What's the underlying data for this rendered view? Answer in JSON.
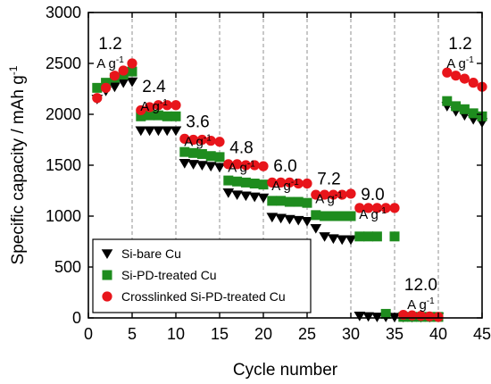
{
  "chart_data": {
    "type": "scatter",
    "title": "",
    "xlabel": "Cycle number",
    "ylabel": "Specific capacity / mAh g",
    "ylabel_superscript": "-1",
    "xlim": [
      0,
      45
    ],
    "ylim": [
      0,
      3000
    ],
    "x_ticks": [
      0,
      5,
      10,
      15,
      20,
      25,
      30,
      35,
      40,
      45
    ],
    "y_ticks": [
      0,
      500,
      1000,
      1500,
      2000,
      2500,
      3000
    ],
    "grid": "dashed vertical lines at 5, 10, 15, 20, 25, 30, 35, 40",
    "legend_position": "bottom-left",
    "rate_unit": "A g",
    "rate_unit_superscript": "-1",
    "rate_labels": [
      {
        "value": "1.2",
        "x": 2.5,
        "y": 2640
      },
      {
        "value": "2.4",
        "x": 7.5,
        "y": 2220
      },
      {
        "value": "3.6",
        "x": 12.5,
        "y": 1875
      },
      {
        "value": "4.8",
        "x": 17.5,
        "y": 1620
      },
      {
        "value": "6.0",
        "x": 22.5,
        "y": 1440
      },
      {
        "value": "7.2",
        "x": 27.5,
        "y": 1310
      },
      {
        "value": "9.0",
        "x": 32.5,
        "y": 1160
      },
      {
        "value": "12.0",
        "x": 38,
        "y": 270
      },
      {
        "value": "1.2",
        "x": 42.5,
        "y": 2640
      }
    ],
    "series": [
      {
        "name": "Si-bare Cu",
        "marker": "triangle-down",
        "color": "#000000",
        "x": [
          1,
          2,
          3,
          4,
          5,
          6,
          7,
          8,
          9,
          10,
          11,
          12,
          13,
          14,
          15,
          16,
          17,
          18,
          19,
          20,
          21,
          22,
          23,
          24,
          25,
          26,
          27,
          28,
          29,
          30,
          31,
          32,
          33,
          34,
          35,
          36,
          37,
          38,
          39,
          40,
          41,
          42,
          43,
          44,
          45
        ],
        "y": [
          2150,
          2230,
          2270,
          2310,
          2320,
          1840,
          1840,
          1840,
          1840,
          1840,
          1520,
          1510,
          1500,
          1490,
          1480,
          1230,
          1210,
          1200,
          1190,
          1180,
          990,
          980,
          970,
          960,
          950,
          880,
          800,
          780,
          770,
          770,
          20,
          15,
          10,
          10,
          8,
          8,
          8,
          8,
          8,
          8,
          2080,
          2030,
          1990,
          1950,
          1920
        ]
      },
      {
        "name": "Si-PD-treated Cu",
        "marker": "square",
        "color": "#1e8c1e",
        "x": [
          1,
          2,
          3,
          4,
          5,
          6,
          7,
          8,
          9,
          10,
          11,
          12,
          13,
          14,
          15,
          16,
          17,
          18,
          19,
          20,
          21,
          22,
          23,
          24,
          25,
          26,
          27,
          28,
          29,
          30,
          31,
          32,
          33,
          34,
          35,
          36,
          37,
          38,
          39,
          40,
          41,
          42,
          43,
          44,
          45
        ],
        "y": [
          2260,
          2310,
          2360,
          2390,
          2420,
          1980,
          1990,
          1990,
          1980,
          1980,
          1630,
          1620,
          1610,
          1590,
          1580,
          1350,
          1340,
          1330,
          1320,
          1310,
          1150,
          1150,
          1140,
          1140,
          1130,
          1010,
          1000,
          1000,
          1000,
          1000,
          800,
          800,
          800,
          40,
          800,
          10,
          10,
          10,
          10,
          10,
          2130,
          2080,
          2050,
          2010,
          1980
        ]
      },
      {
        "name": "Crosslinked Si-PD-treated Cu",
        "marker": "circle",
        "color": "#e8151b",
        "x": [
          1,
          2,
          3,
          4,
          5,
          6,
          7,
          8,
          9,
          10,
          11,
          12,
          13,
          14,
          15,
          16,
          17,
          18,
          19,
          20,
          21,
          22,
          23,
          24,
          25,
          26,
          27,
          28,
          29,
          30,
          31,
          32,
          33,
          34,
          35,
          36,
          37,
          38,
          39,
          40,
          41,
          42,
          43,
          44,
          45
        ],
        "y": [
          2160,
          2260,
          2380,
          2430,
          2500,
          2040,
          2070,
          2090,
          2090,
          2090,
          1760,
          1750,
          1750,
          1740,
          1730,
          1510,
          1510,
          1500,
          1500,
          1490,
          1330,
          1330,
          1330,
          1320,
          1320,
          1210,
          1210,
          1210,
          1210,
          1220,
          1080,
          1080,
          1080,
          1080,
          1080,
          30,
          25,
          20,
          15,
          10,
          2410,
          2380,
          2350,
          2310,
          2270
        ]
      }
    ]
  }
}
